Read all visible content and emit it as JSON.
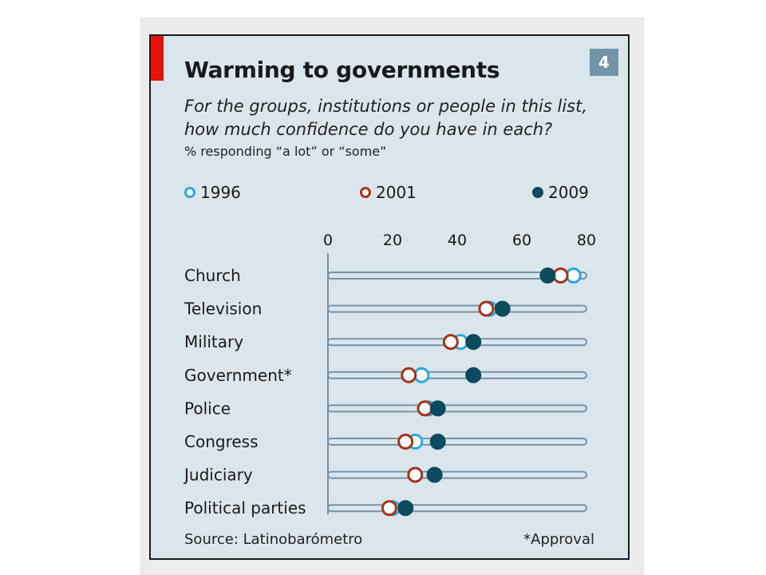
{
  "chart_number": "4",
  "title": "Warming to governments",
  "subtitle": "For the groups, institutions or people in this list, how much confidence do you have in each?",
  "unit_note": "% responding “a lot” or “some”",
  "source": "Source: Latinobarómetro",
  "footnote": "*Approval",
  "colors": {
    "s1996": "#29a9e0",
    "s2001": "#a3321c",
    "s2009": "#0c4a5d",
    "bar": "#7393a7",
    "accent": "#e3120b"
  },
  "legend": [
    {
      "label": "1996",
      "key": "s1996",
      "filled": false
    },
    {
      "label": "2001",
      "key": "s2001",
      "filled": false
    },
    {
      "label": "2009",
      "key": "s2009",
      "filled": true
    }
  ],
  "chart_data": {
    "type": "scatter",
    "title": "Warming to governments",
    "xlim": [
      0,
      80
    ],
    "x_ticks": [
      0,
      20,
      40,
      60,
      80
    ],
    "categories": [
      "Church",
      "Television",
      "Military",
      "Government*",
      "Police",
      "Congress",
      "Judiciary",
      "Political parties"
    ],
    "series": [
      {
        "name": "1996",
        "values": [
          76,
          50,
          41,
          29,
          31,
          27,
          33,
          20
        ]
      },
      {
        "name": "2001",
        "values": [
          72,
          49,
          38,
          25,
          30,
          24,
          27,
          19
        ]
      },
      {
        "name": "2009",
        "values": [
          68,
          54,
          45,
          45,
          34,
          34,
          33,
          24
        ]
      }
    ]
  }
}
